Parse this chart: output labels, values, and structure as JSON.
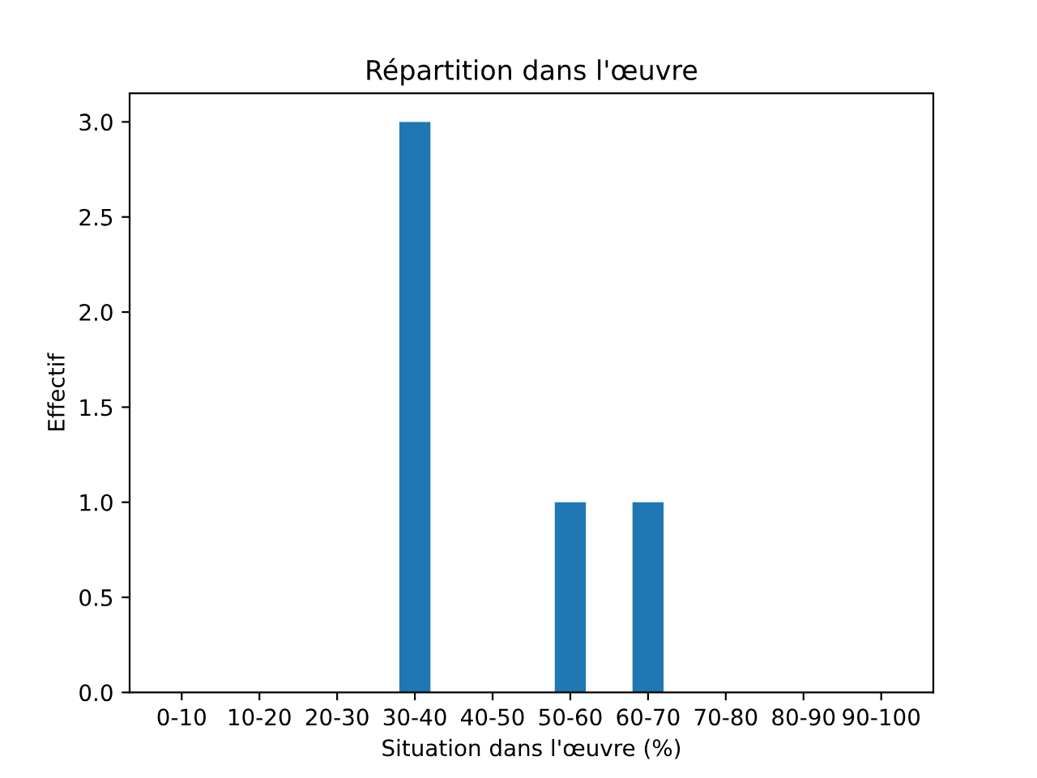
{
  "chart_data": {
    "type": "bar",
    "title": "Répartition dans l'œuvre",
    "xlabel": "Situation dans l'œuvre (%)",
    "ylabel": "Effectif",
    "categories": [
      "0-10",
      "10-20",
      "20-30",
      "30-40",
      "40-50",
      "50-60",
      "60-70",
      "70-80",
      "80-90",
      "90-100"
    ],
    "values": [
      0,
      0,
      0,
      3,
      0,
      1,
      1,
      0,
      0,
      0
    ],
    "color": "#1f77b4",
    "ylim": [
      0,
      3.15
    ],
    "yticks": [
      {
        "value": 0,
        "label": "0.0"
      },
      {
        "value": 0.5,
        "label": "0.5"
      },
      {
        "value": 1,
        "label": "1.0"
      },
      {
        "value": 1.5,
        "label": "1.5"
      },
      {
        "value": 2,
        "label": "2.0"
      },
      {
        "value": 2.5,
        "label": "2.5"
      },
      {
        "value": 3,
        "label": "3.0"
      }
    ],
    "grid": false
  }
}
